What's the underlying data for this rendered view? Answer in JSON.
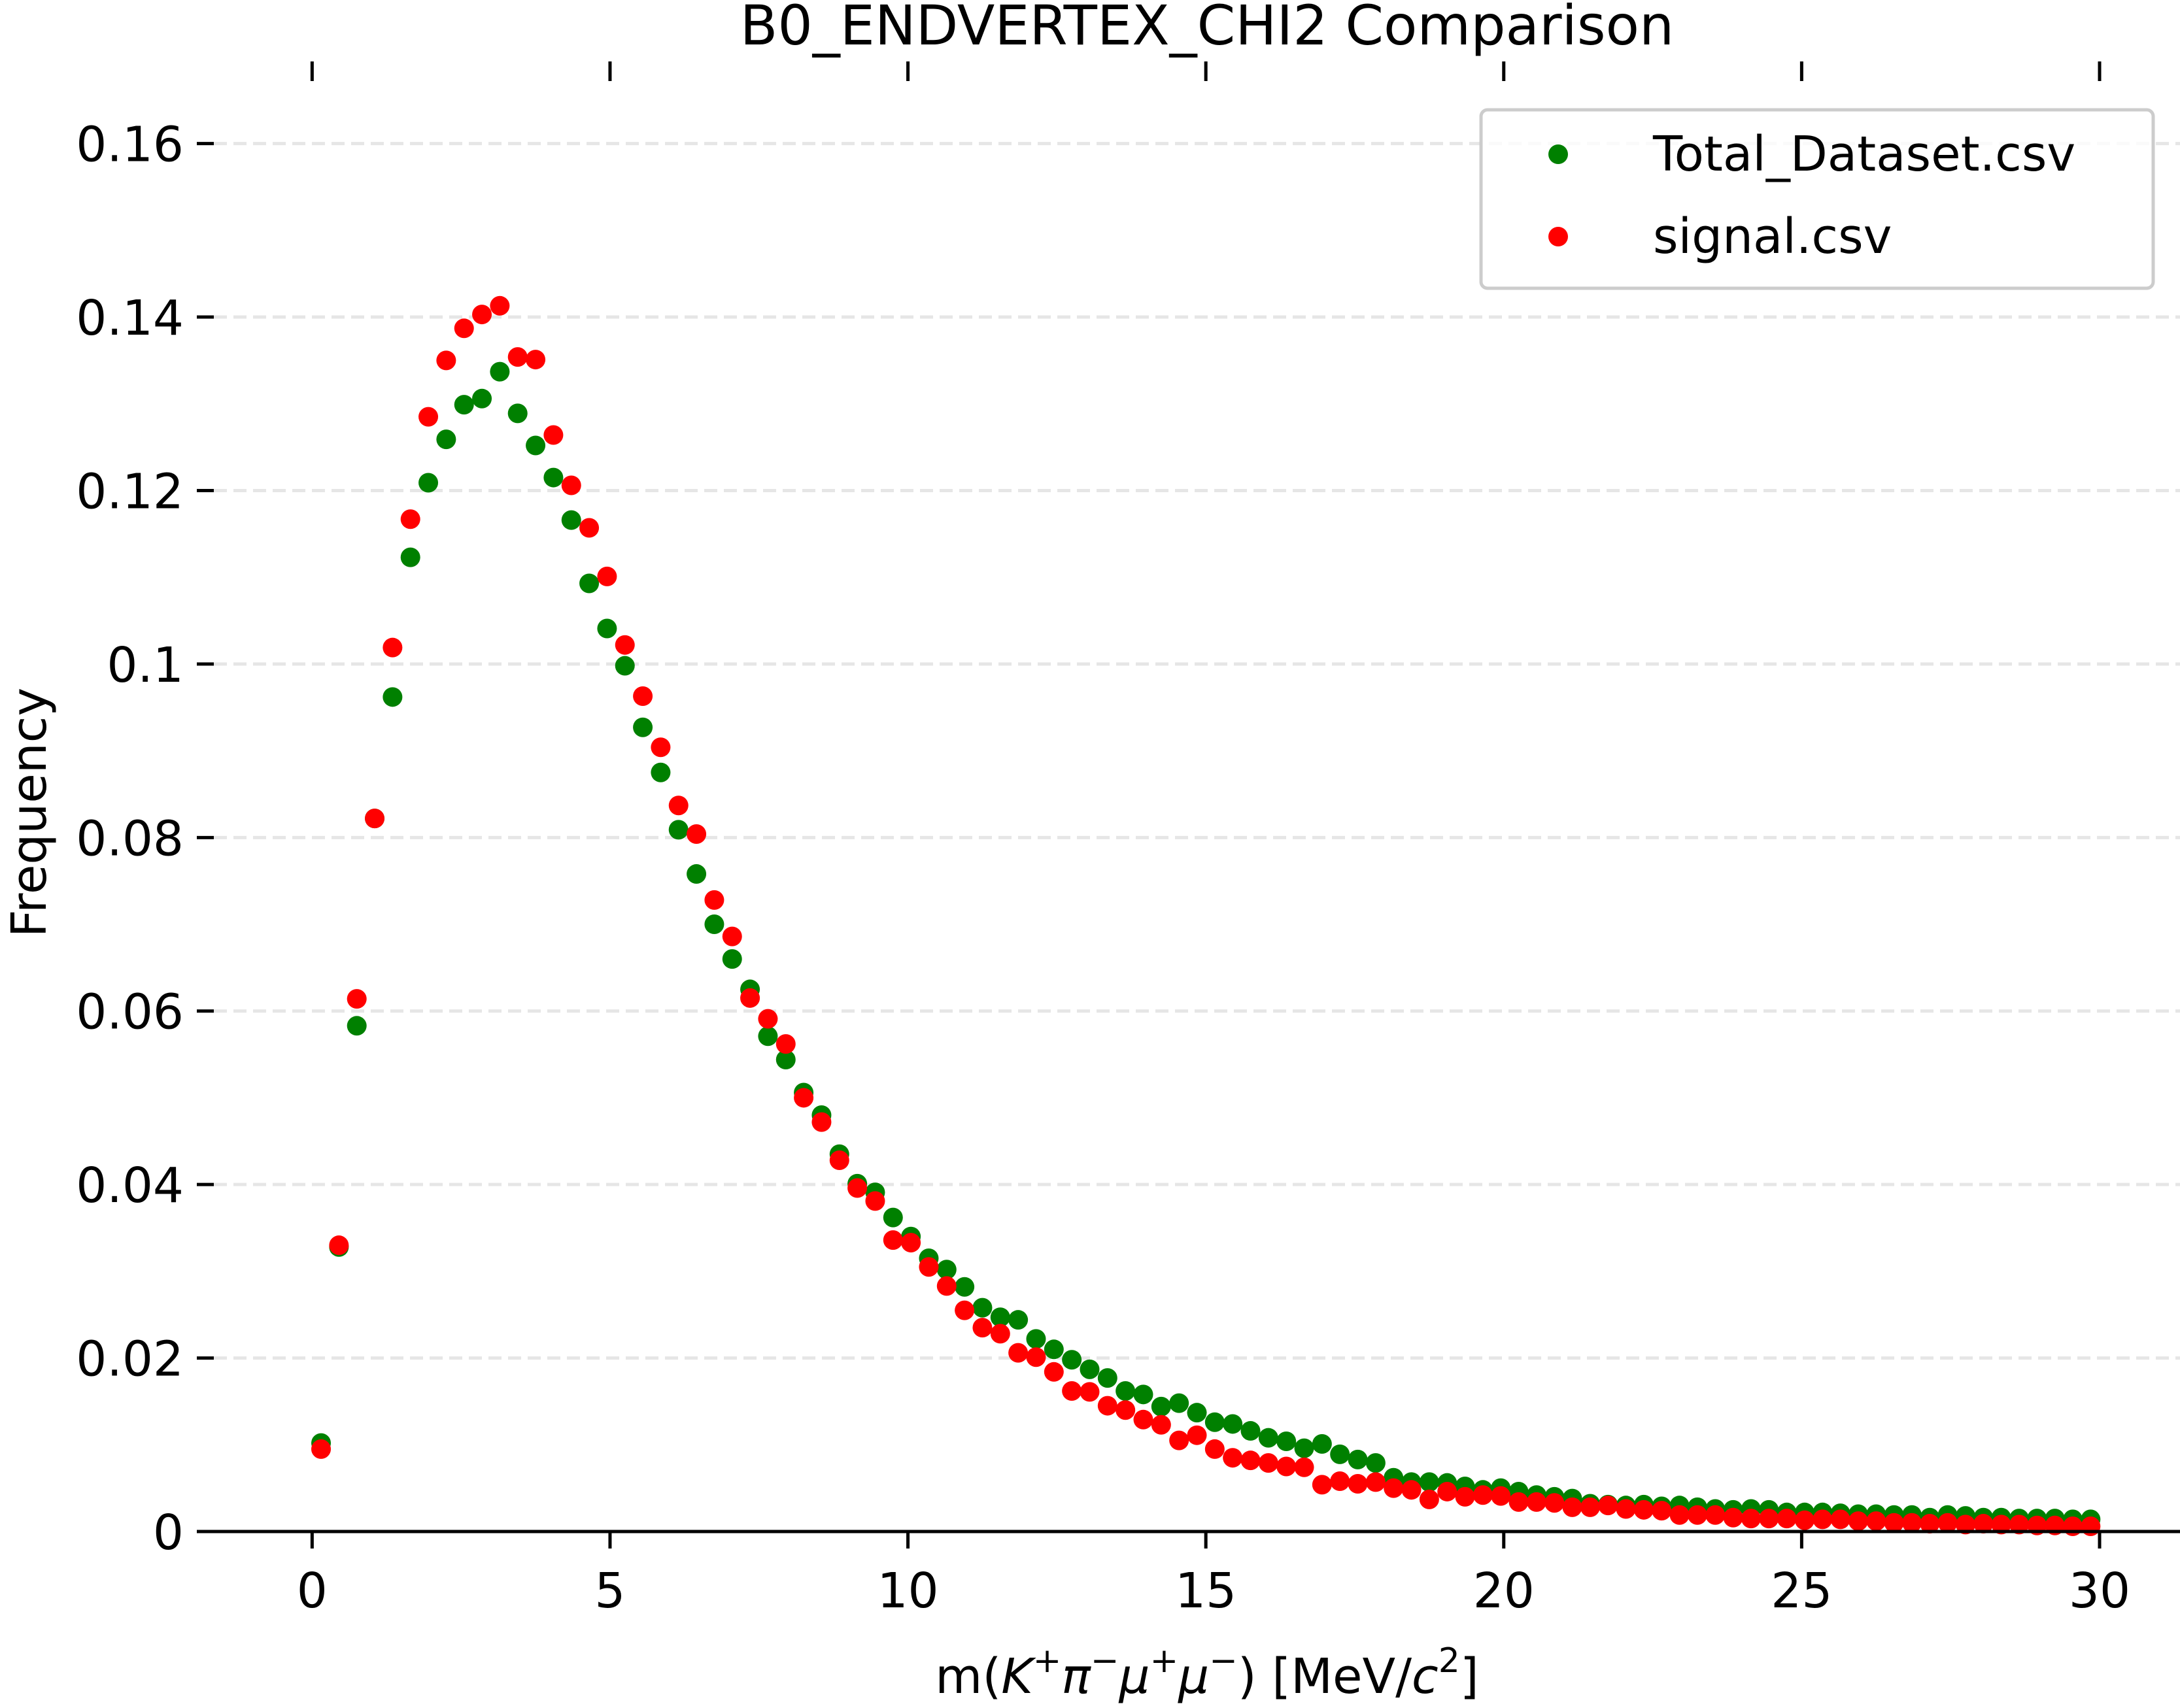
{
  "chart_data": {
    "type": "scatter",
    "title": "B0_ENDVERTEX_CHI2 Comparison",
    "xlabel": {
      "prefix": "m(",
      "var1": "K",
      "sup1": "+",
      "var2": "π",
      "sup2": "−",
      "var3": "μ",
      "sup3": "+",
      "var4": "μ",
      "sup4": "−",
      "mid": ") [MeV/",
      "var5": "c",
      "sup5": "2",
      "suffix": "]"
    },
    "ylabel": "Frequency",
    "xlim": [
      -1.65,
      31.35
    ],
    "ylim": [
      0,
      0.166
    ],
    "grid": "y-dashed",
    "legend_position": "top-right",
    "x_ticks": [
      {
        "value": 0,
        "label": "0"
      },
      {
        "value": 5,
        "label": "5"
      },
      {
        "value": 10,
        "label": "10"
      },
      {
        "value": 15,
        "label": "15"
      },
      {
        "value": 20,
        "label": "20"
      },
      {
        "value": 25,
        "label": "25"
      },
      {
        "value": 30,
        "label": "30"
      }
    ],
    "y_ticks": [
      {
        "value": 0,
        "label": "0"
      },
      {
        "value": 0.02,
        "label": "0.02"
      },
      {
        "value": 0.04,
        "label": "0.04"
      },
      {
        "value": 0.06,
        "label": "0.06"
      },
      {
        "value": 0.08,
        "label": "0.08"
      },
      {
        "value": 0.1,
        "label": "0.1"
      },
      {
        "value": 0.12,
        "label": "0.12"
      },
      {
        "value": 0.14,
        "label": "0.14"
      },
      {
        "value": 0.16,
        "label": "0.16"
      }
    ],
    "x": [
      0.15,
      0.45,
      0.75,
      1.05,
      1.35,
      1.65,
      1.95,
      2.25,
      2.55,
      2.85,
      3.15,
      3.45,
      3.75,
      4.05,
      4.35,
      4.65,
      4.95,
      5.25,
      5.55,
      5.85,
      6.15,
      6.45,
      6.75,
      7.05,
      7.35,
      7.65,
      7.95,
      8.25,
      8.55,
      8.85,
      9.15,
      9.45,
      9.75,
      10.05,
      10.35,
      10.65,
      10.95,
      11.25,
      11.55,
      11.85,
      12.15,
      12.45,
      12.75,
      13.05,
      13.35,
      13.65,
      13.95,
      14.25,
      14.55,
      14.85,
      15.15,
      15.45,
      15.75,
      16.05,
      16.35,
      16.65,
      16.95,
      17.25,
      17.55,
      17.85,
      18.15,
      18.45,
      18.75,
      19.05,
      19.35,
      19.65,
      19.95,
      20.25,
      20.55,
      20.85,
      21.15,
      21.45,
      21.75,
      22.05,
      22.35,
      22.65,
      22.95,
      23.25,
      23.55,
      23.85,
      24.15,
      24.45,
      24.75,
      25.05,
      25.35,
      25.65,
      25.95,
      26.25,
      26.55,
      26.85,
      27.15,
      27.45,
      27.75,
      28.05,
      28.35,
      28.65,
      28.95,
      29.25,
      29.55,
      29.85
    ],
    "series": [
      {
        "name": "Total_Dataset.csv",
        "color": "#008000",
        "values": [
          0.0102,
          0.0328,
          0.0583,
          0.0822,
          0.0962,
          0.1123,
          0.1209,
          0.1259,
          0.1299,
          0.1306,
          0.1337,
          0.1289,
          0.1252,
          0.1215,
          0.1166,
          0.1093,
          0.1041,
          0.0998,
          0.0927,
          0.0875,
          0.0809,
          0.0758,
          0.07,
          0.066,
          0.0625,
          0.0571,
          0.0544,
          0.0506,
          0.048,
          0.0435,
          0.0401,
          0.0391,
          0.0362,
          0.034,
          0.0315,
          0.0302,
          0.0282,
          0.0258,
          0.0247,
          0.0244,
          0.0222,
          0.021,
          0.0198,
          0.0187,
          0.0177,
          0.0162,
          0.0158,
          0.0144,
          0.0148,
          0.0137,
          0.0126,
          0.0124,
          0.0116,
          0.0108,
          0.0104,
          0.0096,
          0.0101,
          0.0089,
          0.0083,
          0.0079,
          0.0062,
          0.0057,
          0.0057,
          0.0056,
          0.0052,
          0.0048,
          0.005,
          0.0046,
          0.0042,
          0.004,
          0.0038,
          0.0032,
          0.0031,
          0.003,
          0.0031,
          0.0029,
          0.003,
          0.0028,
          0.0026,
          0.0025,
          0.0026,
          0.0025,
          0.0022,
          0.0022,
          0.0022,
          0.0021,
          0.002,
          0.002,
          0.0019,
          0.0019,
          0.0016,
          0.0019,
          0.0018,
          0.0016,
          0.0016,
          0.0015,
          0.0015,
          0.0015,
          0.0014,
          0.0014
        ]
      },
      {
        "name": "signal.csv",
        "color": "#ff0000",
        "values": [
          0.0095,
          0.033,
          0.0614,
          0.0822,
          0.1019,
          0.1167,
          0.1285,
          0.135,
          0.1387,
          0.1403,
          0.1413,
          0.1354,
          0.1351,
          0.1264,
          0.1206,
          0.1157,
          0.1101,
          0.1022,
          0.0963,
          0.0904,
          0.0837,
          0.0804,
          0.0728,
          0.0686,
          0.0615,
          0.0591,
          0.0562,
          0.05,
          0.0472,
          0.0428,
          0.0396,
          0.0381,
          0.0336,
          0.0333,
          0.0305,
          0.0283,
          0.0255,
          0.0235,
          0.0228,
          0.0206,
          0.0201,
          0.0184,
          0.0162,
          0.0161,
          0.0145,
          0.014,
          0.0129,
          0.0123,
          0.0105,
          0.0111,
          0.0095,
          0.0085,
          0.0082,
          0.0079,
          0.0075,
          0.0074,
          0.0054,
          0.0058,
          0.0055,
          0.0057,
          0.005,
          0.0048,
          0.0037,
          0.0046,
          0.004,
          0.0042,
          0.0041,
          0.0034,
          0.0034,
          0.0033,
          0.0028,
          0.0028,
          0.003,
          0.0026,
          0.0025,
          0.0024,
          0.0019,
          0.0019,
          0.0019,
          0.0016,
          0.0015,
          0.0015,
          0.0015,
          0.0013,
          0.0014,
          0.0014,
          0.0012,
          0.0012,
          0.001,
          0.001,
          0.0009,
          0.001,
          0.0008,
          0.0009,
          0.0008,
          0.0008,
          0.0007,
          0.0007,
          0.0006,
          0.0006
        ]
      }
    ]
  }
}
